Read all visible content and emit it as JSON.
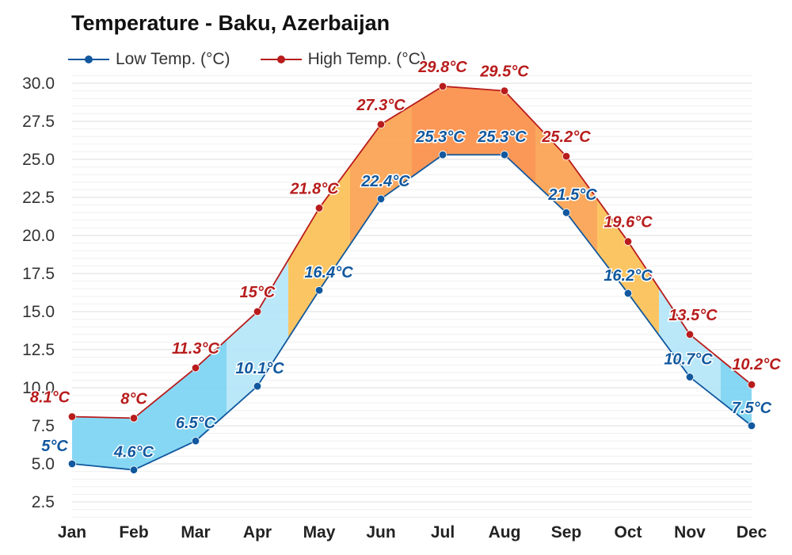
{
  "title": "Temperature - Baku, Azerbaijan",
  "legend": {
    "low_label": "Low Temp. (°C)",
    "high_label": "High Temp. (°C)"
  },
  "colors": {
    "low": "#11589e",
    "high": "#b81c1c",
    "grid": "#e4e4e4"
  },
  "chart_data": {
    "type": "line",
    "title": "Temperature - Baku, Azerbaijan",
    "xlabel": "",
    "ylabel": "",
    "categories": [
      "Jan",
      "Feb",
      "Mar",
      "Apr",
      "May",
      "Jun",
      "Jul",
      "Aug",
      "Sep",
      "Oct",
      "Nov",
      "Dec"
    ],
    "ylim": [
      1.5,
      30.5
    ],
    "yticks": [
      "30.0",
      "27.5",
      "25.0",
      "22.5",
      "20.0",
      "17.5",
      "15.0",
      "12.5",
      "10.0",
      "7.5",
      "5.0",
      "2.5"
    ],
    "grid": true,
    "legend_position": "top-left",
    "fill_between": true,
    "series": [
      {
        "name": "Low Temp. (°C)",
        "values": [
          5,
          4.6,
          6.5,
          10.1,
          16.4,
          22.4,
          25.3,
          25.3,
          21.5,
          16.2,
          10.7,
          7.5
        ],
        "labels": [
          "5°C",
          "4.6°C",
          "6.5°C",
          "10.1°C",
          "16.4°C",
          "22.4°C",
          "25.3°C",
          "25.3°C",
          "21.5°C",
          "16.2°C",
          "10.7°C",
          "7.5°C"
        ]
      },
      {
        "name": "High Temp. (°C)",
        "values": [
          8.1,
          8,
          11.3,
          15,
          21.8,
          27.3,
          29.8,
          29.5,
          25.2,
          19.6,
          13.5,
          10.2
        ],
        "labels": [
          "8.1°C",
          "8°C",
          "11.3°C",
          "15°C",
          "21.8°C",
          "27.3°C",
          "29.8°C",
          "29.5°C",
          "25.2°C",
          "19.6°C",
          "13.5°C",
          "10.2°C"
        ]
      }
    ]
  }
}
